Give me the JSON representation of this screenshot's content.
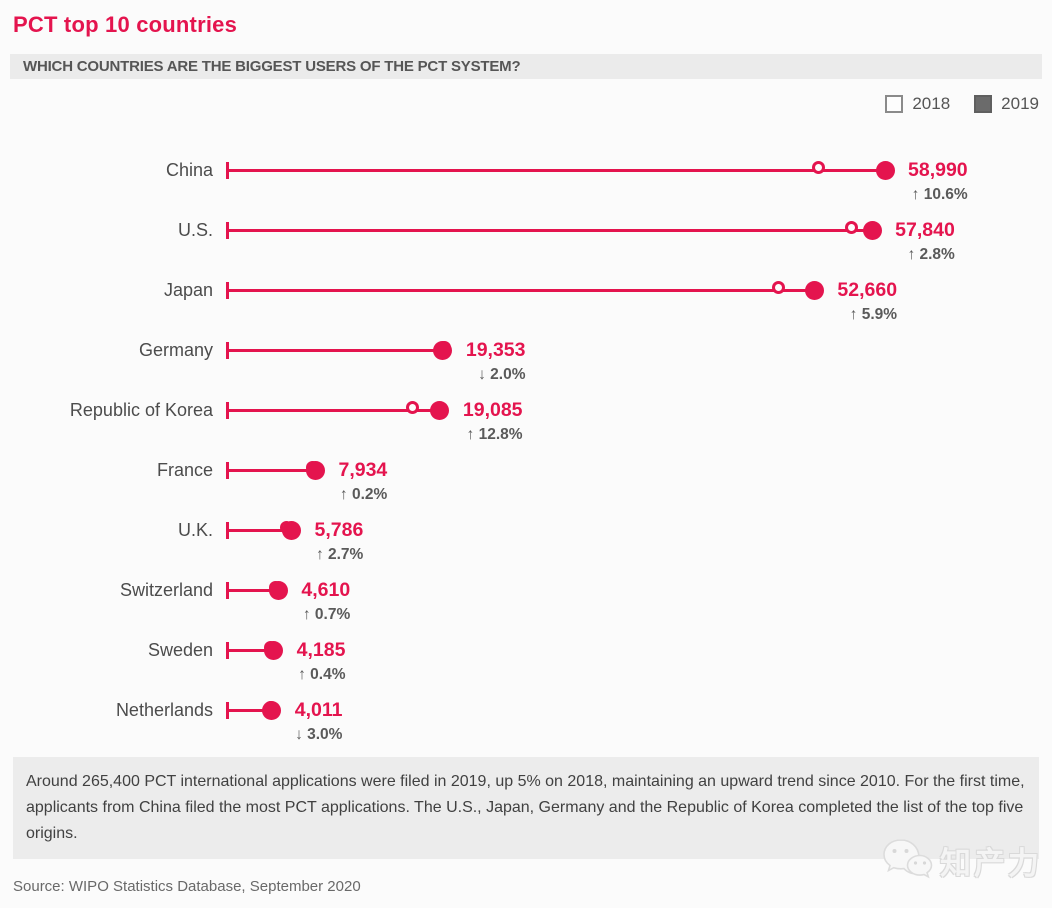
{
  "page": {
    "title": "PCT top 10 countries",
    "subtitle": "WHICH COUNTRIES ARE THE BIGGEST USERS OF THE PCT SYSTEM?",
    "footnote": "Around 265,400 PCT international applications were filed in 2019, up 5% on 2018, maintaining an upward trend since 2010. For the first time, applicants from China filed the most PCT applications. The U.S., Japan, Germany and the Republic of Korea completed the list of the top five origins.",
    "source": "Source: WIPO Statistics Database, September 2020",
    "watermark": "知产力"
  },
  "legend": {
    "items": [
      {
        "label": "2018",
        "style": "open"
      },
      {
        "label": "2019",
        "style": "filled"
      }
    ]
  },
  "colors": {
    "accent": "#e4144e",
    "label_gray": "#4c4c4c",
    "change_gray": "#5a5a5a",
    "legend_2019_fill": "#6b6b6b",
    "bar_background": "#ebebeb",
    "footnote_background": "#ececec"
  },
  "chart_data": {
    "type": "dumbbell",
    "title": "PCT top 10 countries",
    "subtitle": "WHICH COUNTRIES ARE THE BIGGEST USERS OF THE PCT SYSTEM?",
    "categories": [
      "China",
      "U.S.",
      "Japan",
      "Germany",
      "Republic of Korea",
      "France",
      "U.K.",
      "Switzerland",
      "Sweden",
      "Netherlands"
    ],
    "series": [
      {
        "name": "2018",
        "marker": "open-circle",
        "estimated": true,
        "values": [
          53336,
          56265,
          49725,
          19748,
          16919,
          7918,
          5634,
          4578,
          4168,
          4135
        ]
      },
      {
        "name": "2019",
        "marker": "filled-circle",
        "values": [
          58990,
          57840,
          52660,
          19353,
          19085,
          7934,
          5786,
          4610,
          4185,
          4011
        ]
      }
    ],
    "value_labels": [
      "58,990",
      "57,840",
      "52,660",
      "19,353",
      "19,085",
      "7,934",
      "5,786",
      "4,610",
      "4,185",
      "4,011"
    ],
    "change_labels": [
      "↑ 10.6%",
      "↑ 2.8%",
      "↑ 5.9%",
      "↓ 2.0%",
      "↑ 12.8%",
      "↑ 0.2%",
      "↑ 2.7%",
      "↑ 0.7%",
      "↑ 0.4%",
      "↓ 3.0%"
    ],
    "changes_pct": [
      10.6,
      2.8,
      5.9,
      -2.0,
      12.8,
      0.2,
      2.7,
      0.7,
      0.4,
      -3.0
    ],
    "xlim": [
      0,
      60000
    ],
    "grid": false,
    "legend_entries": [
      "2018",
      "2019"
    ],
    "legend_position": "top-right"
  }
}
